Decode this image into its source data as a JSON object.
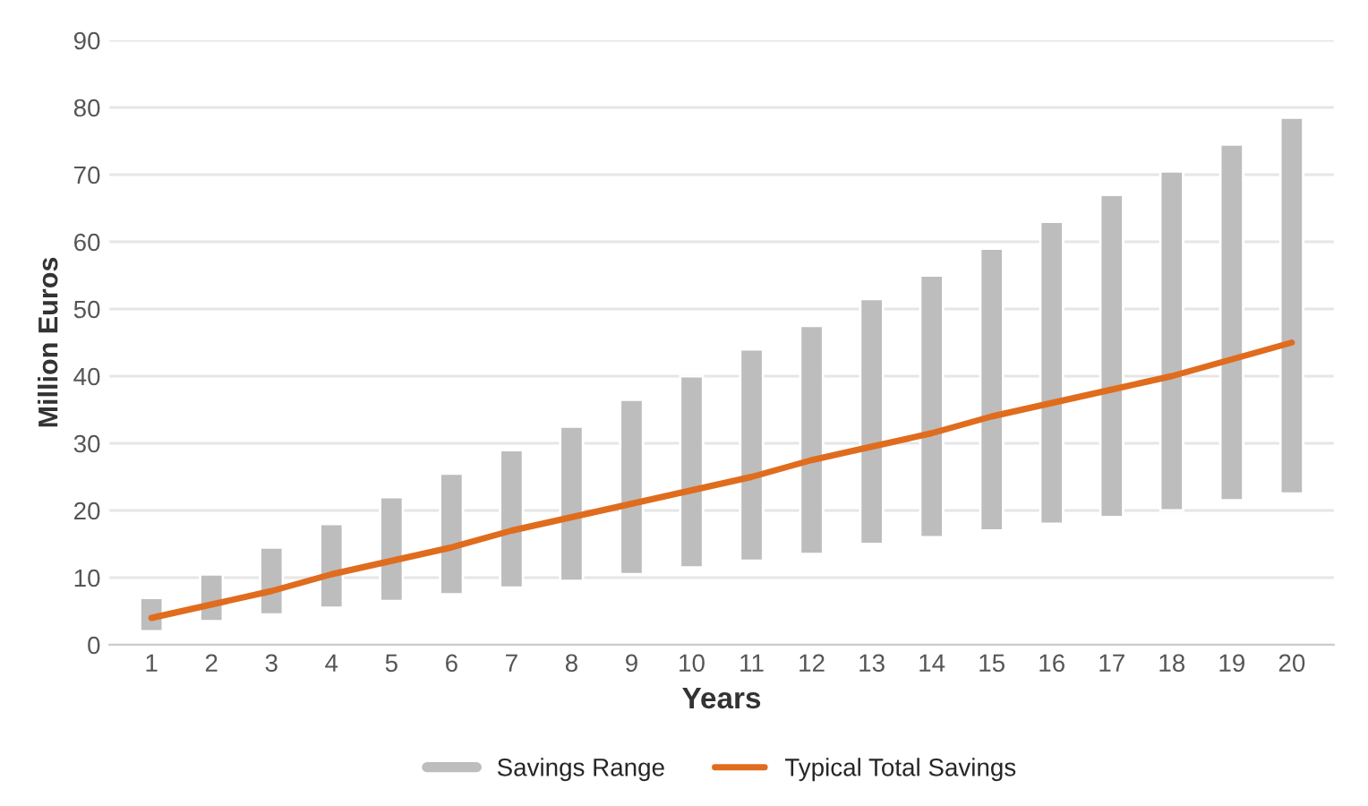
{
  "chart_data": {
    "type": "bar",
    "xlabel": "Years",
    "ylabel": "Million Euros",
    "categories": [
      "1",
      "2",
      "3",
      "4",
      "5",
      "6",
      "7",
      "8",
      "9",
      "10",
      "11",
      "12",
      "13",
      "14",
      "15",
      "16",
      "17",
      "18",
      "19",
      "20"
    ],
    "ylim": [
      0,
      90
    ],
    "yticks": [
      0,
      10,
      20,
      30,
      40,
      50,
      60,
      70,
      80,
      90
    ],
    "grid": "y",
    "legend": "bottom",
    "series": [
      {
        "name": "Savings Range",
        "color": "#bdbdbd",
        "base": [
          2,
          3.5,
          4.5,
          5.5,
          6.5,
          7.5,
          8.5,
          9.5,
          10.5,
          11.5,
          12.5,
          13.5,
          15,
          16,
          17,
          18,
          19,
          20,
          21.5,
          22.5
        ],
        "values": [
          5,
          7,
          10,
          12.5,
          15.5,
          18,
          20.5,
          23,
          26,
          28.5,
          31.5,
          34,
          36.5,
          39,
          42,
          45,
          48,
          50.5,
          53,
          56
        ]
      },
      {
        "name": "Typical Total Savings",
        "type": "line",
        "color": "#e06c1e",
        "values": [
          4,
          6,
          8,
          10.5,
          12.5,
          14.5,
          17,
          19,
          21,
          23,
          25,
          27.5,
          29.5,
          31.5,
          34,
          36,
          38,
          40,
          42.5,
          45
        ]
      }
    ]
  }
}
